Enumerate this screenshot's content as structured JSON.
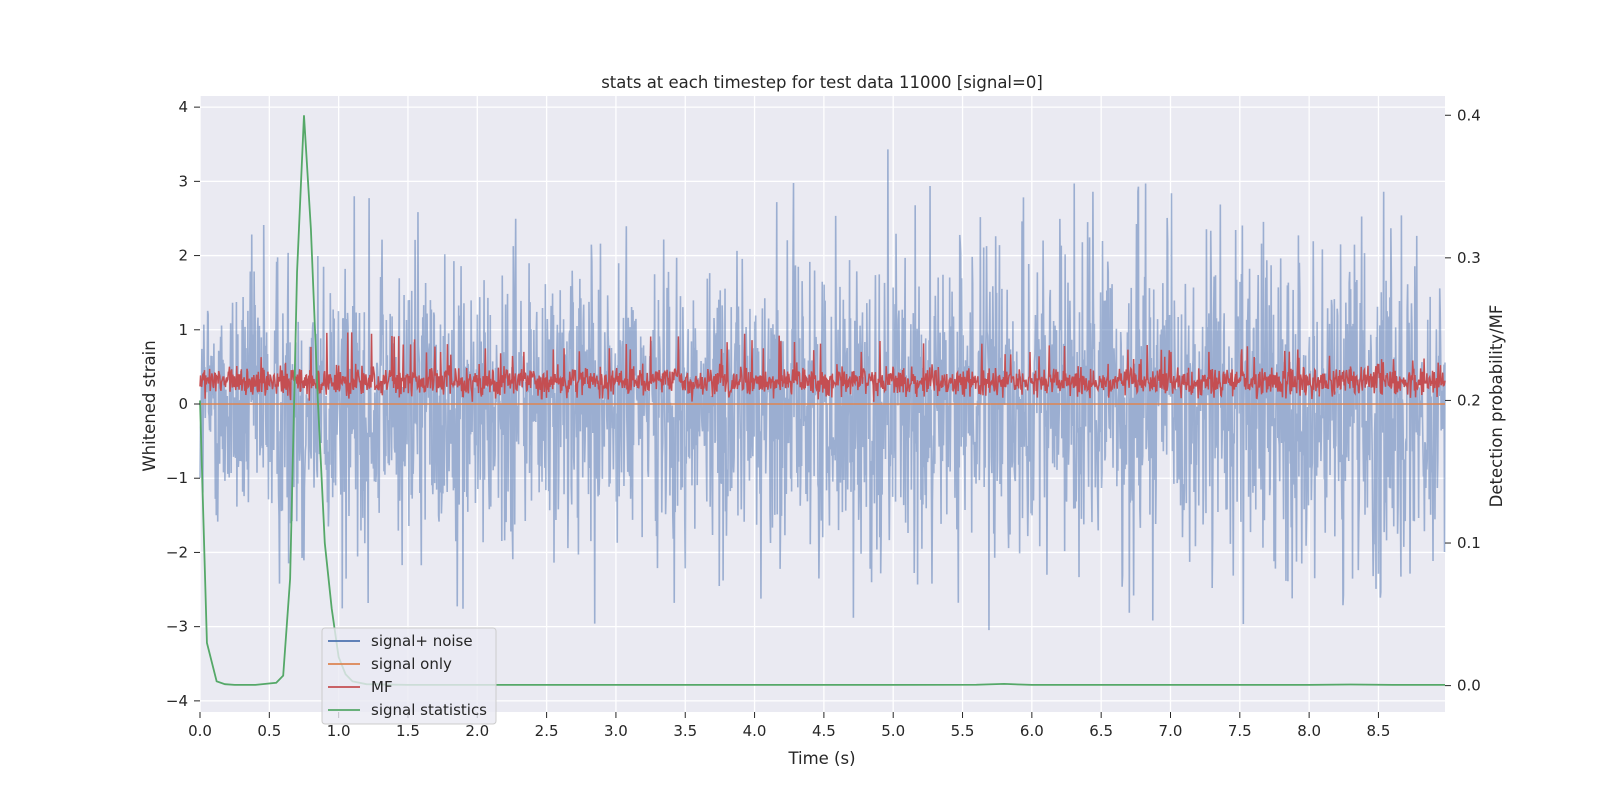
{
  "chart_data": {
    "type": "line",
    "title": "stats at each timestep for test data 11000 [signal=0]",
    "xlabel": "Time (s)",
    "ylabel": "Whitened strain",
    "ylabel_right": "Detection probability/MF",
    "xlim": [
      0.0,
      8.98
    ],
    "ylim": [
      -4.15,
      4.15
    ],
    "ylim_right": [
      -0.0185,
      0.4135
    ],
    "xticks": [
      "0.0",
      "0.5",
      "1.0",
      "1.5",
      "2.0",
      "2.5",
      "3.0",
      "3.5",
      "4.0",
      "4.5",
      "5.0",
      "5.5",
      "6.0",
      "6.5",
      "7.0",
      "7.5",
      "8.0",
      "8.5"
    ],
    "yticks": [
      "4",
      "3",
      "2",
      "1",
      "0",
      "−1",
      "−2",
      "−3",
      "−4"
    ],
    "yticks_right": [
      "0.4",
      "0.3",
      "0.2",
      "0.1",
      "0.0"
    ],
    "grid": true,
    "legend_position": "lower-left",
    "series": [
      {
        "name": "signal+ noise",
        "color": "#4c72b0",
        "axis": "left",
        "style": "dense noise trace, roughly between -3.5 and 4.0 (alpha 0.5)",
        "x": [
          0.0,
          0.5,
          0.67,
          1.0,
          2.0,
          3.0,
          3.5,
          4.0,
          4.95,
          5.5,
          5.8,
          6.0,
          7.0,
          7.5,
          8.0,
          8.5,
          8.98
        ],
        "peaks": [
          2.3,
          3.2,
          4.0,
          2.8,
          2.8,
          3.0,
          3.4,
          2.9,
          3.5,
          3.0,
          3.0,
          3.0,
          3.0,
          3.1,
          2.7,
          3.7,
          2.4
        ],
        "troughs": [
          -2.3,
          -3.3,
          -2.9,
          -3.3,
          -2.9,
          -3.1,
          -2.6,
          -2.7,
          -3.0,
          -3.2,
          -3.5,
          -3.3,
          -3.3,
          -3.3,
          -3.3,
          -3.2,
          -2.4
        ]
      },
      {
        "name": "signal only",
        "color": "#dd8452",
        "axis": "left",
        "x": [
          0.0,
          8.98
        ],
        "y": [
          0.0,
          0.0
        ]
      },
      {
        "name": "MF",
        "color": "#c44e52",
        "axis": "left",
        "style": "dense trace, roughly between 0 and 1.0 (mean about 0.3)",
        "x": [
          0.0,
          1.0,
          2.0,
          3.0,
          4.0,
          5.0,
          6.0,
          7.0,
          8.0,
          8.98
        ],
        "peaks": [
          0.65,
          1.0,
          0.85,
          0.9,
          0.95,
          0.85,
          0.8,
          0.8,
          0.8,
          0.6
        ],
        "troughs": [
          0.02,
          0.0,
          0.0,
          0.0,
          0.02,
          0.0,
          0.02,
          0.0,
          0.02,
          0.05
        ]
      },
      {
        "name": "signal statistics",
        "color": "#55a868",
        "axis": "right",
        "x": [
          0.0,
          0.05,
          0.12,
          0.18,
          0.25,
          0.4,
          0.55,
          0.6,
          0.65,
          0.7,
          0.75,
          0.8,
          0.85,
          0.9,
          0.95,
          1.0,
          1.05,
          1.1,
          1.2,
          1.5,
          2.0,
          3.0,
          4.0,
          5.0,
          5.6,
          5.8,
          6.0,
          7.0,
          8.0,
          8.3,
          8.6,
          8.98
        ],
        "y": [
          0.2,
          0.03,
          0.003,
          0.001,
          0.0005,
          0.0005,
          0.002,
          0.007,
          0.075,
          0.29,
          0.4,
          0.32,
          0.2,
          0.1,
          0.054,
          0.02,
          0.008,
          0.003,
          0.001,
          0.0005,
          0.0005,
          0.0005,
          0.0005,
          0.0005,
          0.0006,
          0.0012,
          0.0005,
          0.0005,
          0.0005,
          0.0008,
          0.0005,
          0.0005
        ]
      }
    ]
  }
}
